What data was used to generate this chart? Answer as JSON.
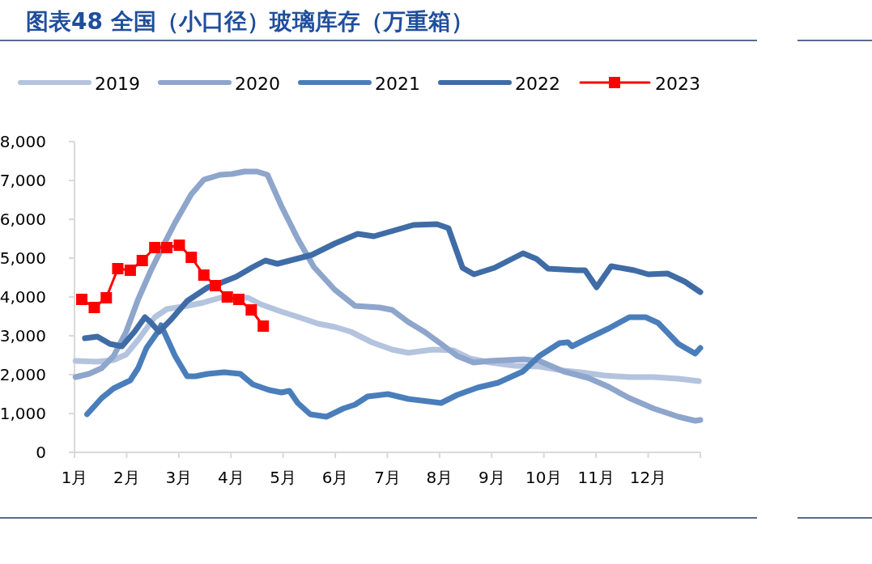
{
  "chart_data": {
    "type": "line",
    "title": "图表48 全国（小口径）玻璃库存（万重箱）",
    "legend": "top",
    "grid": false,
    "line_style": "solid",
    "xlim": [
      1,
      13
    ],
    "ylim": [
      0,
      8000
    ],
    "xticks": [
      {
        "value": 1,
        "label": "1月"
      },
      {
        "value": 2,
        "label": "2月"
      },
      {
        "value": 3,
        "label": "3月"
      },
      {
        "value": 4,
        "label": "4月"
      },
      {
        "value": 5,
        "label": "5月"
      },
      {
        "value": 6,
        "label": "6月"
      },
      {
        "value": 7,
        "label": "7月"
      },
      {
        "value": 8,
        "label": "8月"
      },
      {
        "value": 9,
        "label": "9月"
      },
      {
        "value": 10,
        "label": "10月"
      },
      {
        "value": 11,
        "label": "11月"
      },
      {
        "value": 12,
        "label": "12月"
      },
      {
        "value": 13,
        "label": null
      }
    ],
    "yticks": [
      {
        "value": 0,
        "label": "0"
      },
      {
        "value": 1000,
        "label": "1,000"
      },
      {
        "value": 2000,
        "label": "2,000"
      },
      {
        "value": 3000,
        "label": "3,000"
      },
      {
        "value": 4000,
        "label": "4,000"
      },
      {
        "value": 5000,
        "label": "5,000"
      },
      {
        "value": 6000,
        "label": "6,000"
      },
      {
        "value": 7000,
        "label": "7,000"
      },
      {
        "value": 8000,
        "label": "8,000"
      }
    ],
    "series": [
      {
        "name": "2019",
        "color": "#b4c3de",
        "marker": "none",
        "x": [
          1.02,
          1.44,
          1.75,
          1.99,
          2.22,
          2.54,
          2.77,
          3.16,
          3.47,
          3.79,
          4.1,
          4.33,
          4.57,
          4.96,
          5.35,
          5.67,
          5.99,
          6.3,
          6.7,
          7.09,
          7.4,
          7.87,
          8.26,
          8.58,
          8.97,
          9.44,
          9.91,
          10.38,
          10.69,
          11.16,
          11.64,
          12.1,
          12.58,
          12.97
        ],
        "values": [
          2354,
          2333,
          2375,
          2521,
          2896,
          3479,
          3688,
          3771,
          3854,
          3979,
          3979,
          3979,
          3813,
          3625,
          3458,
          3313,
          3229,
          3104,
          2833,
          2646,
          2563,
          2646,
          2625,
          2417,
          2313,
          2229,
          2208,
          2104,
          2063,
          1979,
          1938,
          1938,
          1896,
          1833
        ]
      },
      {
        "name": "2020",
        "color": "#8ea5cc",
        "marker": "none",
        "x": [
          1.02,
          1.28,
          1.52,
          1.75,
          1.99,
          2.22,
          2.46,
          2.69,
          2.93,
          3.24,
          3.48,
          3.79,
          4.02,
          4.26,
          4.5,
          4.7,
          4.97,
          5.28,
          5.59,
          5.99,
          6.38,
          6.85,
          7.09,
          7.4,
          7.71,
          8.03,
          8.34,
          8.65,
          8.97,
          9.28,
          9.6,
          9.91,
          10.38,
          10.85,
          11.24,
          11.64,
          12.11,
          12.58,
          12.9,
          13.0
        ],
        "values": [
          1938,
          2021,
          2167,
          2479,
          3104,
          3938,
          4667,
          5292,
          5917,
          6646,
          7021,
          7146,
          7167,
          7229,
          7229,
          7146,
          6333,
          5500,
          4771,
          4188,
          3771,
          3729,
          3667,
          3354,
          3104,
          2792,
          2479,
          2313,
          2354,
          2375,
          2396,
          2354,
          2083,
          1917,
          1688,
          1396,
          1125,
          917,
          813,
          833
        ]
      },
      {
        "name": "2021",
        "color": "#4a7ebb",
        "marker": "none",
        "x": [
          1.24,
          1.52,
          1.75,
          2.07,
          2.22,
          2.38,
          2.62,
          2.66,
          2.93,
          3.16,
          3.32,
          3.56,
          3.87,
          4.18,
          4.42,
          4.73,
          4.97,
          5.12,
          5.28,
          5.52,
          5.83,
          6.15,
          6.38,
          6.62,
          7.01,
          7.4,
          8.03,
          8.34,
          8.73,
          9.12,
          9.6,
          9.91,
          10.3,
          10.46,
          10.54,
          10.85,
          11.24,
          11.64,
          11.95,
          12.19,
          12.58,
          12.9,
          13.0
        ],
        "values": [
          979,
          1396,
          1646,
          1854,
          2167,
          2688,
          3146,
          3271,
          2479,
          1958,
          1958,
          2021,
          2063,
          2021,
          1750,
          1604,
          1542,
          1583,
          1271,
          979,
          917,
          1125,
          1229,
          1438,
          1500,
          1375,
          1271,
          1479,
          1667,
          1792,
          2083,
          2479,
          2813,
          2833,
          2729,
          2938,
          3188,
          3479,
          3479,
          3333,
          2792,
          2542,
          2688
        ]
      },
      {
        "name": "2022",
        "color": "#3f6ca6",
        "marker": "none",
        "x": [
          1.2,
          1.44,
          1.68,
          1.91,
          2.15,
          2.35,
          2.46,
          2.62,
          2.85,
          3.16,
          3.56,
          3.79,
          4.1,
          4.42,
          4.66,
          4.89,
          4.89,
          5.55,
          5.99,
          6.43,
          6.74,
          7.5,
          7.95,
          8.17,
          8.44,
          8.66,
          9.05,
          9.6,
          9.86,
          10.08,
          10.63,
          10.79,
          11.01,
          11.29,
          11.73,
          12.0,
          12.37,
          12.7,
          13.0
        ],
        "values": [
          2938,
          2979,
          2792,
          2729,
          3104,
          3479,
          3350,
          3104,
          3417,
          3896,
          4250,
          4354,
          4521,
          4771,
          4938,
          4854,
          4854,
          5083,
          5375,
          5625,
          5563,
          5854,
          5875,
          5771,
          4750,
          4583,
          4750,
          5125,
          4979,
          4729,
          4688,
          4688,
          4250,
          4792,
          4688,
          4583,
          4604,
          4396,
          4125
        ]
      },
      {
        "name": "2023",
        "color": "#ff0000",
        "marker": "square",
        "x": [
          1.14,
          1.38,
          1.61,
          1.83,
          2.07,
          2.3,
          2.54,
          2.77,
          3.01,
          3.24,
          3.48,
          3.7,
          3.93,
          4.15,
          4.39,
          4.62
        ],
        "values": [
          3938,
          3729,
          3979,
          4729,
          4688,
          4938,
          5271,
          5271,
          5333,
          5021,
          4563,
          4292,
          4000,
          3938,
          3667,
          3250
        ]
      }
    ]
  }
}
